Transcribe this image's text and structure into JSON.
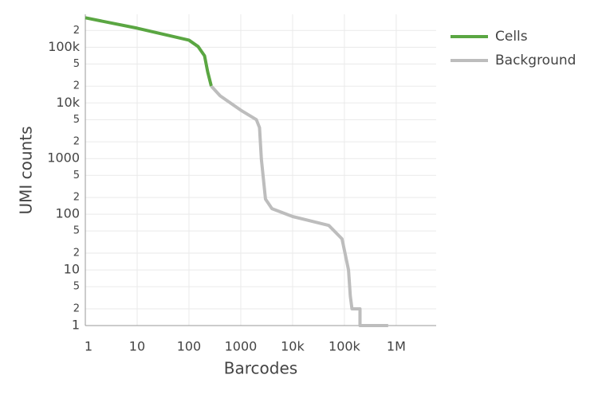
{
  "chart_data": {
    "type": "line",
    "x_label": "Barcodes",
    "y_label": "UMI counts",
    "log_x": true,
    "log_y": true,
    "grid": true,
    "legend": "top-right",
    "xlim": [
      1,
      5900000
    ],
    "ylim": [
      1,
      390000
    ],
    "xticks": [
      1,
      10,
      100,
      1000,
      {
        "value": 10000,
        "label": "10k"
      },
      {
        "value": 100000,
        "label": "100k"
      },
      {
        "value": 1000000,
        "label": "1M"
      }
    ],
    "yticks": [
      1,
      2,
      5,
      10,
      {
        "value": 20,
        "label": "2"
      },
      {
        "value": 50,
        "label": "5"
      },
      100,
      {
        "value": 200,
        "label": "2"
      },
      {
        "value": 500,
        "label": "5"
      },
      1000,
      {
        "value": 2000,
        "label": "2"
      },
      {
        "value": 5000,
        "label": "5"
      },
      {
        "value": 10000,
        "label": "10k"
      },
      {
        "value": 20000,
        "label": "2"
      },
      {
        "value": 50000,
        "label": "5"
      },
      {
        "value": 100000,
        "label": "100k"
      },
      {
        "value": 200000,
        "label": "2"
      }
    ],
    "series": [
      {
        "name": "Cells",
        "color": "#5aa642",
        "x": [
          1,
          10,
          100,
          150,
          200,
          230,
          270
        ],
        "values": [
          338000,
          220000,
          134000,
          103000,
          70000,
          36000,
          20000
        ]
      },
      {
        "name": "Background",
        "color": "#bdbdbd",
        "x": [
          270,
          400,
          1000,
          2000,
          2300,
          2500,
          3000,
          4000,
          10000,
          50000,
          90000,
          120000,
          130000,
          140000,
          200000,
          200000,
          700000
        ],
        "values": [
          20000,
          13400,
          7400,
          5000,
          3600,
          970,
          187,
          126,
          91,
          63,
          36,
          10,
          3.4,
          2,
          2,
          1,
          1
        ]
      }
    ]
  }
}
